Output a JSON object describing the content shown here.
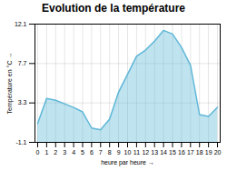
{
  "chart_data": {
    "type": "area",
    "title": "Evolution de la température",
    "xlabel": "heure par heure",
    "ylabel": "Température en °C",
    "x": [
      0,
      1,
      2,
      3,
      4,
      5,
      6,
      7,
      8,
      9,
      10,
      11,
      12,
      13,
      14,
      15,
      16,
      17,
      18,
      19,
      20
    ],
    "values": [
      1.0,
      3.8,
      3.6,
      3.2,
      2.8,
      2.3,
      0.5,
      0.3,
      1.5,
      4.5,
      6.5,
      8.5,
      9.2,
      10.2,
      11.4,
      11.0,
      9.5,
      7.5,
      2.0,
      1.8,
      2.8
    ],
    "color": "#60b8d8",
    "xlim": [
      -0.3,
      20.3
    ],
    "xticks": [
      0,
      1,
      2,
      3,
      4,
      5,
      6,
      7,
      8,
      9,
      10,
      11,
      12,
      13,
      14,
      15,
      16,
      17,
      18,
      19,
      20
    ],
    "ylim": [
      -1.1,
      12.1
    ],
    "yticks": [
      -1.1,
      3.3,
      7.7,
      12.1
    ],
    "grid": true
  }
}
